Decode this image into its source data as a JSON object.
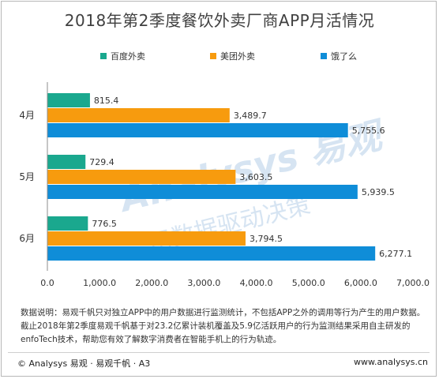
{
  "chart_data": {
    "type": "bar",
    "orientation": "horizontal",
    "title": "2018年第2季度餐饮外卖厂商APP月活情况",
    "categories": [
      "4月",
      "5月",
      "6月"
    ],
    "series": [
      {
        "name": "百度外卖",
        "color": "#1aa88e",
        "values": [
          815.4,
          729.4,
          776.5
        ],
        "labels": [
          "815.4",
          "729.4",
          "776.5"
        ]
      },
      {
        "name": "美团外卖",
        "color": "#f79b0e",
        "values": [
          3489.7,
          3603.5,
          3794.5
        ],
        "labels": [
          "3,489.7",
          "3,603.5",
          "3,794.5"
        ]
      },
      {
        "name": "饿了么",
        "color": "#0f8dd8",
        "values": [
          5755.6,
          5939.5,
          6277.1
        ],
        "labels": [
          "5,755.6",
          "5,939.5",
          "6,277.1"
        ]
      }
    ],
    "xlim": [
      0,
      7000
    ],
    "xticks": [
      0,
      1000,
      2000,
      3000,
      4000,
      5000,
      6000,
      7000
    ],
    "xtick_labels": [
      "0.0",
      "1,000.0",
      "2,000.0",
      "3,000.0",
      "4,000.0",
      "5,000.0",
      "6,000.0",
      "7,000.0"
    ],
    "xlabel": "",
    "ylabel": "",
    "grid": false,
    "legend_position": "top"
  },
  "notes": {
    "line1": "数据说明：易观千帆只对独立APP中的用户数据进行监测统计，不包括APP之外的调用等行为产生的用户数据。",
    "line2": "截止2018年第2季度易观千帆基于对23.2亿累计装机覆盖及5.9亿活跃用户的行为监测结果采用自主研发的",
    "line3": "enfoTech技术，帮助您有效了解数字消费者在智能手机上的行为轨迹。"
  },
  "footer": {
    "left": "© Analysys 易观 · 易观千帆 · A3",
    "right": "www.analysys.cn"
  },
  "watermark": {
    "brand": "Analysys 易观",
    "tagline": "用数据驱动决策",
    "color": "#d6e4f2"
  }
}
